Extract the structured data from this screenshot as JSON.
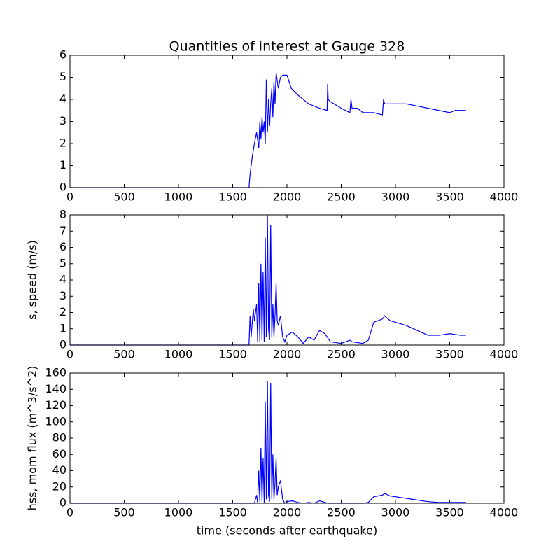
{
  "chart_data": [
    {
      "type": "line",
      "title": "Quantities of interest at Gauge 328",
      "x": [
        0,
        1650,
        1660,
        1670,
        1680,
        1700,
        1720,
        1740,
        1750,
        1760,
        1770,
        1780,
        1790,
        1800,
        1810,
        1820,
        1830,
        1840,
        1850,
        1860,
        1870,
        1880,
        1890,
        1900,
        1920,
        1940,
        1960,
        1980,
        2000,
        2020,
        2040,
        2100,
        2200,
        2300,
        2370,
        2375,
        2380,
        2400,
        2500,
        2580,
        2590,
        2600,
        2650,
        2700,
        2800,
        2880,
        2890,
        2900,
        3000,
        3100,
        3200,
        3300,
        3400,
        3500,
        3550,
        3600,
        3650
      ],
      "series": [
        {
          "color": "#0000ff",
          "values": [
            0,
            0,
            0.6,
            1.0,
            1.4,
            2.0,
            2.5,
            1.8,
            3.0,
            2.2,
            3.2,
            2.5,
            3.0,
            2.0,
            4.9,
            2.5,
            4.0,
            2.8,
            3.8,
            4.5,
            3.2,
            4.8,
            3.8,
            5.2,
            4.5,
            5.0,
            5.1,
            5.1,
            5.1,
            4.8,
            4.5,
            4.2,
            3.8,
            3.6,
            3.5,
            4.7,
            4.0,
            3.9,
            3.6,
            3.4,
            4.0,
            3.6,
            3.6,
            3.4,
            3.4,
            3.3,
            4.0,
            3.8,
            3.8,
            3.8,
            3.7,
            3.6,
            3.5,
            3.4,
            3.5,
            3.5,
            3.5
          ]
        }
      ],
      "xlim": [
        0,
        4000
      ],
      "xticks": [
        0,
        500,
        1000,
        1500,
        2000,
        2500,
        3000,
        3500,
        4000
      ],
      "ylim": [
        0,
        6
      ],
      "yticks": [
        0,
        1,
        2,
        3,
        4,
        5,
        6
      ]
    },
    {
      "type": "line",
      "y_label": "s, speed (m/s)",
      "x": [
        0,
        1650,
        1660,
        1670,
        1690,
        1700,
        1720,
        1730,
        1740,
        1750,
        1760,
        1770,
        1780,
        1790,
        1800,
        1810,
        1820,
        1830,
        1840,
        1850,
        1860,
        1870,
        1880,
        1890,
        1900,
        1910,
        1920,
        1940,
        1960,
        1980,
        2000,
        2050,
        2100,
        2150,
        2200,
        2250,
        2300,
        2350,
        2380,
        2400,
        2500,
        2580,
        2600,
        2700,
        2750,
        2800,
        2880,
        2900,
        2950,
        3000,
        3100,
        3200,
        3300,
        3400,
        3500,
        3600,
        3650
      ],
      "series": [
        {
          "color": "#0000ff",
          "values": [
            0,
            0,
            1.8,
            0.5,
            2.2,
            1.5,
            2.5,
            0.2,
            3.8,
            0.2,
            5.0,
            0.3,
            4.5,
            0.2,
            6.6,
            0.5,
            8.0,
            1.0,
            0.3,
            7.4,
            0.5,
            2.5,
            0.5,
            1.8,
            3.8,
            1.5,
            1.2,
            1.8,
            0.5,
            0.2,
            0.6,
            0.8,
            0.5,
            0.1,
            0.5,
            0.3,
            0.9,
            0.7,
            0.4,
            0.2,
            0.1,
            0.3,
            0.2,
            0.1,
            0.3,
            1.4,
            1.6,
            1.8,
            1.5,
            1.4,
            1.2,
            0.9,
            0.6,
            0.6,
            0.7,
            0.6,
            0.6
          ]
        }
      ],
      "xlim": [
        0,
        4000
      ],
      "xticks": [
        0,
        500,
        1000,
        1500,
        2000,
        2500,
        3000,
        3500,
        4000
      ],
      "ylim": [
        0,
        8
      ],
      "yticks": [
        0,
        1,
        2,
        3,
        4,
        5,
        6,
        7,
        8
      ]
    },
    {
      "type": "line",
      "x_label": "time (seconds after earthquake)",
      "y_label": "hss, mom flux (m^3/s^2)",
      "x": [
        0,
        1650,
        1660,
        1670,
        1690,
        1700,
        1720,
        1730,
        1740,
        1750,
        1760,
        1770,
        1780,
        1790,
        1800,
        1810,
        1820,
        1830,
        1840,
        1850,
        1860,
        1870,
        1880,
        1890,
        1900,
        1910,
        1920,
        1940,
        1960,
        1980,
        2000,
        2050,
        2100,
        2150,
        2200,
        2250,
        2300,
        2350,
        2380,
        2400,
        2500,
        2580,
        2600,
        2700,
        2750,
        2800,
        2880,
        2900,
        2950,
        3000,
        3100,
        3200,
        3300,
        3400,
        3500,
        3600,
        3650
      ],
      "series": [
        {
          "color": "#0000ff",
          "values": [
            0,
            0,
            0,
            0,
            0,
            0,
            10,
            0,
            40,
            2,
            68,
            3,
            55,
            1,
            125,
            5,
            150,
            10,
            2,
            148,
            5,
            60,
            5,
            25,
            55,
            10,
            20,
            28,
            5,
            0,
            2,
            3,
            1,
            0,
            1,
            0,
            3,
            1,
            0,
            0,
            0,
            0,
            0,
            0,
            1,
            8,
            10,
            12,
            9,
            8,
            6,
            4,
            2,
            1,
            1,
            1,
            1
          ]
        }
      ],
      "xlim": [
        0,
        4000
      ],
      "xticks": [
        0,
        500,
        1000,
        1500,
        2000,
        2500,
        3000,
        3500,
        4000
      ],
      "ylim": [
        0,
        160
      ],
      "yticks": [
        0,
        20,
        40,
        60,
        80,
        100,
        120,
        140,
        160
      ]
    }
  ]
}
